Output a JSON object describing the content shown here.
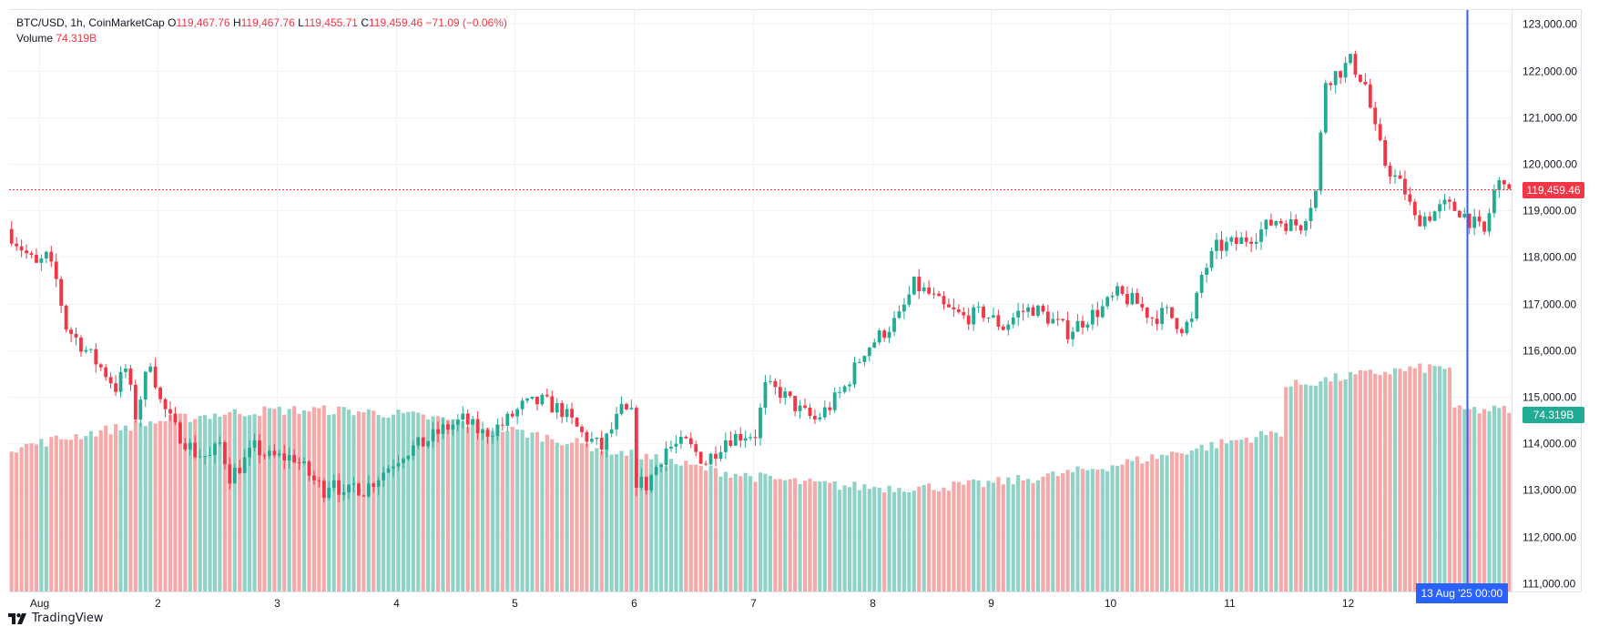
{
  "legend": {
    "symbol": "BTC/USD, 1h, CoinMarketCap",
    "open_key": "O",
    "open": "119,467.76",
    "high_key": "H",
    "high": "119,467.76",
    "low_key": "L",
    "low": "119,455.71",
    "close_key": "C",
    "close": "119,459.46",
    "change": "−71.09 (−0.06%)",
    "volume_label": "Volume",
    "volume_value": "74.319B"
  },
  "labels": {
    "last_price": "119,459.46",
    "last_volume": "74.319B",
    "crosshair_time": "13 Aug '25   00:00"
  },
  "branding": {
    "name": "TradingView",
    "icon": "tradingview-logo-icon"
  },
  "colors": {
    "up": "#22ab94",
    "down": "#f23645",
    "volume_up": "#8fd3c7",
    "volume_down": "#f7a9a9",
    "crosshair": "#2962ff",
    "last_price_line": "#f23645"
  },
  "chart_data": {
    "type": "candlestick",
    "title": "BTC/USD, 1h, CoinMarketCap",
    "y_ticks": [
      "123,000.00",
      "122,000.00",
      "121,000.00",
      "120,000.00",
      "119,000.00",
      "118,000.00",
      "117,000.00",
      "116,000.00",
      "115,000.00",
      "114,000.00",
      "113,000.00",
      "112,000.00",
      "111,000.00"
    ],
    "ylim": [
      110820,
      123320
    ],
    "x_ticks": [
      "Aug",
      "2",
      "3",
      "4",
      "5",
      "6",
      "7",
      "8",
      "9",
      "10",
      "11",
      "12"
    ],
    "xlim_hours": [
      -6,
      297
    ],
    "x_tick_hours": [
      0,
      24,
      48,
      72,
      96,
      120,
      144,
      168,
      192,
      216,
      240,
      264
    ],
    "crosshair_hour": 288,
    "last_price": 119459.46,
    "volume_ylim_billion": [
      0,
      160
    ],
    "keypoints": [
      [
        -6,
        118600
      ],
      [
        0,
        117800
      ],
      [
        2,
        118000
      ],
      [
        4,
        117500
      ],
      [
        6,
        116500
      ],
      [
        10,
        116000
      ],
      [
        14,
        115500
      ],
      [
        16,
        115200
      ],
      [
        18,
        115600
      ],
      [
        20,
        114600
      ],
      [
        23,
        115800
      ],
      [
        25,
        114900
      ],
      [
        28,
        114300
      ],
      [
        32,
        113800
      ],
      [
        35,
        113700
      ],
      [
        37,
        114000
      ],
      [
        39,
        113300
      ],
      [
        41,
        113500
      ],
      [
        44,
        113900
      ],
      [
        47,
        113700
      ],
      [
        52,
        113700
      ],
      [
        56,
        113200
      ],
      [
        58,
        113000
      ],
      [
        60,
        113300
      ],
      [
        62,
        112800
      ],
      [
        64,
        113100
      ],
      [
        66,
        113000
      ],
      [
        68,
        113200
      ],
      [
        71,
        113500
      ],
      [
        74,
        113800
      ],
      [
        78,
        114000
      ],
      [
        82,
        114300
      ],
      [
        86,
        114500
      ],
      [
        90,
        114200
      ],
      [
        94,
        114400
      ],
      [
        98,
        114800
      ],
      [
        102,
        114900
      ],
      [
        106,
        114700
      ],
      [
        110,
        114200
      ],
      [
        114,
        113900
      ],
      [
        118,
        114700
      ],
      [
        120,
        114600
      ],
      [
        121,
        113200
      ],
      [
        123,
        113100
      ],
      [
        127,
        113900
      ],
      [
        131,
        114000
      ],
      [
        135,
        113600
      ],
      [
        139,
        114100
      ],
      [
        143,
        114200
      ],
      [
        145,
        114200
      ],
      [
        147,
        115200
      ],
      [
        150,
        115100
      ],
      [
        154,
        114700
      ],
      [
        157,
        114500
      ],
      [
        160,
        114800
      ],
      [
        163,
        115200
      ],
      [
        167,
        116000
      ],
      [
        171,
        116400
      ],
      [
        174,
        116700
      ],
      [
        177,
        117400
      ],
      [
        180,
        117200
      ],
      [
        183,
        116900
      ],
      [
        187,
        116700
      ],
      [
        191,
        116800
      ],
      [
        195,
        116500
      ],
      [
        198,
        116800
      ],
      [
        201,
        116900
      ],
      [
        204,
        116700
      ],
      [
        208,
        116400
      ],
      [
        212,
        116700
      ],
      [
        215,
        116900
      ],
      [
        218,
        117200
      ],
      [
        222,
        117000
      ],
      [
        225,
        116700
      ],
      [
        228,
        116800
      ],
      [
        231,
        116500
      ],
      [
        233,
        116600
      ],
      [
        235,
        117600
      ],
      [
        238,
        118200
      ],
      [
        242,
        118300
      ],
      [
        246,
        118500
      ],
      [
        250,
        118800
      ],
      [
        253,
        118700
      ],
      [
        255,
        118700
      ],
      [
        258,
        119400
      ],
      [
        260,
        121800
      ],
      [
        263,
        122000
      ],
      [
        265,
        122200
      ],
      [
        268,
        121700
      ],
      [
        270,
        120700
      ],
      [
        272,
        120000
      ],
      [
        274,
        119700
      ],
      [
        276,
        119400
      ],
      [
        278,
        118800
      ],
      [
        281,
        118900
      ],
      [
        284,
        119100
      ],
      [
        287,
        119000
      ],
      [
        290,
        118700
      ],
      [
        292,
        118500
      ],
      [
        294,
        119400
      ],
      [
        297,
        119900
      ]
    ]
  }
}
